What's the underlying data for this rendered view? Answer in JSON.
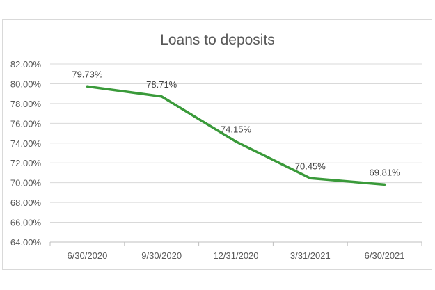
{
  "chart_data": {
    "type": "line",
    "title": "Loans to deposits",
    "categories": [
      "6/30/2020",
      "9/30/2020",
      "12/31/2020",
      "3/31/2021",
      "6/30/2021"
    ],
    "series": [
      {
        "values": [
          79.73,
          78.71,
          74.15,
          70.45,
          69.81
        ],
        "labels": [
          "79.73%",
          "78.71%",
          "74.15%",
          "70.45%",
          "69.81%"
        ],
        "color": "#3a9a3a"
      }
    ],
    "ylim": [
      64,
      82
    ],
    "yticks": [
      64,
      66,
      68,
      70,
      72,
      74,
      76,
      78,
      80,
      82
    ],
    "ytick_labels": [
      "64.00%",
      "66.00%",
      "68.00%",
      "70.00%",
      "72.00%",
      "74.00%",
      "76.00%",
      "78.00%",
      "80.00%",
      "82.00%"
    ],
    "grid": true,
    "legend": "none"
  }
}
